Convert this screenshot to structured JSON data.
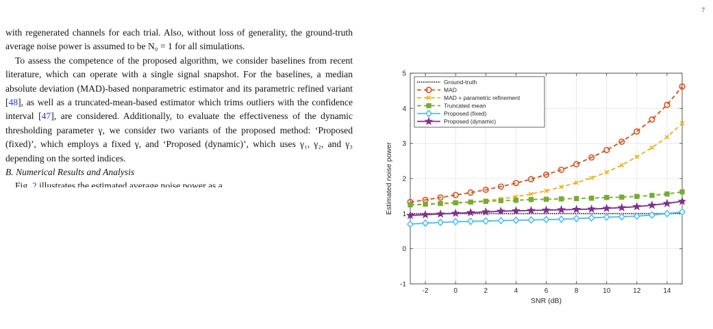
{
  "page": {
    "number": "7"
  },
  "text": {
    "para1": "with regenerated channels for each trial. Also, without loss of generality, the ground-truth average noise power is assumed to be N₀ = 1 for all simulations.",
    "para2_a": "To assess the competence of the proposed algorithm, we consider baselines from recent literature, which can operate with a single signal snapshot. For the baselines, a median absolute deviation (MAD)-based nonparametric estimator and its parametric refined variant [",
    "ref_48": "48",
    "para2_b": "], as well as a truncated-mean-based estimator which trims outliers with the confidence interval [",
    "ref_47": "47",
    "para2_c": "], are considered. Additionally, to evaluate the effectiveness of the dynamic thresholding parameter γ, we consider two variants of the proposed method: ‘Proposed (fixed)’, which employs a fixed γ, and ‘Proposed (dynamic)’, which uses γ₁, γ₂, and γ₃ depending on the sorted indices.",
    "section_heading": "B. Numerical Results and Analysis",
    "fig_sentence_a": "Fig. ",
    "fig_ref": "2",
    "fig_sentence_b": " illustrates the estimated average noise power as a"
  },
  "chart_data": {
    "type": "line",
    "xlabel": "SNR (dB)",
    "ylabel": "Estimated noise power",
    "xlim": [
      -3,
      15
    ],
    "ylim": [
      -1,
      5
    ],
    "xticks": [
      -2,
      0,
      2,
      4,
      6,
      8,
      10,
      12,
      14
    ],
    "yticks": [
      -1,
      0,
      1,
      2,
      3,
      4,
      5
    ],
    "grid": true,
    "legend_position": "top-left",
    "x": [
      -3,
      -2,
      -1,
      0,
      1,
      2,
      3,
      4,
      5,
      6,
      7,
      8,
      9,
      10,
      11,
      12,
      13,
      14,
      15
    ],
    "series": [
      {
        "name": "Ground-truth",
        "color": "#000000",
        "style": "dotted",
        "marker": "none",
        "values": [
          1,
          1,
          1,
          1,
          1,
          1,
          1,
          1,
          1,
          1,
          1,
          1,
          1,
          1,
          1,
          1,
          1,
          1,
          1
        ]
      },
      {
        "name": "MAD",
        "color": "#d95319",
        "style": "dashed",
        "marker": "circle",
        "values": [
          1.33,
          1.39,
          1.46,
          1.53,
          1.6,
          1.68,
          1.77,
          1.87,
          1.98,
          2.11,
          2.25,
          2.41,
          2.6,
          2.81,
          3.05,
          3.34,
          3.68,
          4.1,
          4.62
        ]
      },
      {
        "name": "MAD + parametric refinement",
        "color": "#edb120",
        "style": "dashed",
        "marker": "x",
        "values": [
          1.25,
          1.26,
          1.28,
          1.3,
          1.33,
          1.37,
          1.42,
          1.48,
          1.56,
          1.65,
          1.76,
          1.88,
          2.02,
          2.18,
          2.38,
          2.62,
          2.88,
          3.18,
          3.57
        ]
      },
      {
        "name": "Truncated mean",
        "color": "#77ac30",
        "style": "dashed",
        "marker": "square",
        "values": [
          1.25,
          1.27,
          1.29,
          1.31,
          1.33,
          1.35,
          1.37,
          1.38,
          1.4,
          1.41,
          1.42,
          1.43,
          1.44,
          1.46,
          1.47,
          1.49,
          1.52,
          1.56,
          1.62
        ]
      },
      {
        "name": "Proposed (fixed)",
        "color": "#4dbeee",
        "style": "solid",
        "marker": "diamond",
        "values": [
          0.7,
          0.73,
          0.75,
          0.77,
          0.78,
          0.79,
          0.8,
          0.81,
          0.82,
          0.83,
          0.84,
          0.86,
          0.88,
          0.9,
          0.91,
          0.93,
          0.96,
          1.0,
          1.05
        ]
      },
      {
        "name": "Proposed (dynamic)",
        "color": "#7e2f8e",
        "style": "solid",
        "marker": "star",
        "values": [
          0.95,
          0.97,
          0.99,
          1.01,
          1.03,
          1.05,
          1.07,
          1.08,
          1.09,
          1.1,
          1.11,
          1.12,
          1.13,
          1.15,
          1.17,
          1.2,
          1.24,
          1.29,
          1.35
        ]
      }
    ]
  }
}
